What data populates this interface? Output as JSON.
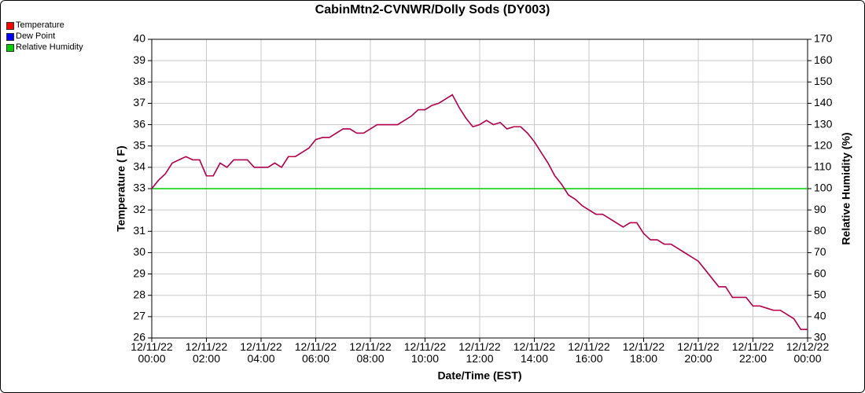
{
  "chart_data": {
    "type": "line",
    "title": "CabinMtn2-CVNWR/Dolly Sods (DY003)",
    "x_label": "Date/Time (EST)",
    "y_label": "Temperature ( F)",
    "y2_label": "Relative Humidity (%)",
    "x": [
      "12/11/22 00:00",
      "12/11/22 00:15",
      "12/11/22 00:30",
      "12/11/22 00:45",
      "12/11/22 01:00",
      "12/11/22 01:15",
      "12/11/22 01:30",
      "12/11/22 01:45",
      "12/11/22 02:00",
      "12/11/22 02:15",
      "12/11/22 02:30",
      "12/11/22 02:45",
      "12/11/22 03:00",
      "12/11/22 03:15",
      "12/11/22 03:30",
      "12/11/22 03:45",
      "12/11/22 04:00",
      "12/11/22 04:15",
      "12/11/22 04:30",
      "12/11/22 04:45",
      "12/11/22 05:00",
      "12/11/22 05:15",
      "12/11/22 05:30",
      "12/11/22 05:45",
      "12/11/22 06:00",
      "12/11/22 06:15",
      "12/11/22 06:30",
      "12/11/22 06:45",
      "12/11/22 07:00",
      "12/11/22 07:15",
      "12/11/22 07:30",
      "12/11/22 07:45",
      "12/11/22 08:00",
      "12/11/22 08:15",
      "12/11/22 08:30",
      "12/11/22 08:45",
      "12/11/22 09:00",
      "12/11/22 09:15",
      "12/11/22 09:30",
      "12/11/22 09:45",
      "12/11/22 10:00",
      "12/11/22 10:15",
      "12/11/22 10:30",
      "12/11/22 10:45",
      "12/11/22 11:00",
      "12/11/22 11:15",
      "12/11/22 11:30",
      "12/11/22 11:45",
      "12/11/22 12:00",
      "12/11/22 12:15",
      "12/11/22 12:30",
      "12/11/22 12:45",
      "12/11/22 13:00",
      "12/11/22 13:15",
      "12/11/22 13:30",
      "12/11/22 13:45",
      "12/11/22 14:00",
      "12/11/22 14:15",
      "12/11/22 14:30",
      "12/11/22 14:45",
      "12/11/22 15:00",
      "12/11/22 15:15",
      "12/11/22 15:30",
      "12/11/22 15:45",
      "12/11/22 16:00",
      "12/11/22 16:15",
      "12/11/22 16:30",
      "12/11/22 16:45",
      "12/11/22 17:00",
      "12/11/22 17:15",
      "12/11/22 17:30",
      "12/11/22 17:45",
      "12/11/22 18:00",
      "12/11/22 18:15",
      "12/11/22 18:30",
      "12/11/22 18:45",
      "12/11/22 19:00",
      "12/11/22 19:15",
      "12/11/22 19:30",
      "12/11/22 19:45",
      "12/11/22 20:00",
      "12/11/22 20:15",
      "12/11/22 20:30",
      "12/11/22 20:45",
      "12/11/22 21:00",
      "12/11/22 21:15",
      "12/11/22 21:30",
      "12/11/22 21:45",
      "12/11/22 22:00",
      "12/11/22 22:15",
      "12/11/22 22:30",
      "12/11/22 22:45",
      "12/11/22 23:00",
      "12/11/22 23:15",
      "12/11/22 23:30",
      "12/11/22 23:45",
      "12/12/22 00:00"
    ],
    "series": [
      {
        "name": "Temperature",
        "color": "#ff0000",
        "values": [
          33.0,
          33.4,
          33.7,
          34.2,
          34.35,
          34.5,
          34.35,
          34.35,
          33.6,
          33.6,
          34.2,
          34.0,
          34.35,
          34.35,
          34.35,
          34.0,
          34.0,
          34.0,
          34.2,
          34.0,
          34.5,
          34.5,
          34.7,
          34.9,
          35.3,
          35.4,
          35.4,
          35.6,
          35.8,
          35.8,
          35.6,
          35.6,
          35.8,
          36.0,
          36.0,
          36.0,
          36.0,
          36.2,
          36.4,
          36.7,
          36.7,
          36.9,
          37.0,
          37.2,
          37.4,
          36.8,
          36.3,
          35.9,
          36.0,
          36.2,
          36.0,
          36.1,
          35.8,
          35.9,
          35.9,
          35.6,
          35.2,
          34.7,
          34.2,
          33.6,
          33.2,
          32.7,
          32.5,
          32.2,
          32.0,
          31.8,
          31.8,
          31.6,
          31.4,
          31.2,
          31.4,
          31.4,
          30.9,
          30.6,
          30.6,
          30.4,
          30.4,
          30.2,
          30.0,
          29.8,
          29.6,
          29.2,
          28.8,
          28.4,
          28.4,
          27.9,
          27.9,
          27.9,
          27.5,
          27.5,
          27.4,
          27.3,
          27.3,
          27.1,
          26.9,
          26.4,
          26.4
        ]
      },
      {
        "name": "Dew Point",
        "color": "#0000ff",
        "values": [
          33.0,
          33.4,
          33.7,
          34.2,
          34.35,
          34.5,
          34.35,
          34.35,
          33.6,
          33.6,
          34.2,
          34.0,
          34.35,
          34.35,
          34.35,
          34.0,
          34.0,
          34.0,
          34.2,
          34.0,
          34.5,
          34.5,
          34.7,
          34.9,
          35.3,
          35.4,
          35.4,
          35.6,
          35.8,
          35.8,
          35.6,
          35.6,
          35.8,
          36.0,
          36.0,
          36.0,
          36.0,
          36.2,
          36.4,
          36.7,
          36.7,
          36.9,
          37.0,
          37.2,
          37.4,
          36.8,
          36.3,
          35.9,
          36.0,
          36.2,
          36.0,
          36.1,
          35.8,
          35.9,
          35.9,
          35.6,
          35.2,
          34.7,
          34.2,
          33.6,
          33.2,
          32.7,
          32.5,
          32.2,
          32.0,
          31.8,
          31.8,
          31.6,
          31.4,
          31.2,
          31.4,
          31.4,
          30.9,
          30.6,
          30.6,
          30.4,
          30.4,
          30.2,
          30.0,
          29.8,
          29.6,
          29.2,
          28.8,
          28.4,
          28.4,
          27.9,
          27.9,
          27.9,
          27.5,
          27.5,
          27.4,
          27.3,
          27.3,
          27.1,
          26.9,
          26.4,
          26.4
        ]
      },
      {
        "name": "Relative Humidity",
        "color": "#00cc00",
        "axis": "y2",
        "values": [
          100,
          100,
          100,
          100,
          100,
          100,
          100,
          100,
          100,
          100,
          100,
          100,
          100,
          100,
          100,
          100,
          100,
          100,
          100,
          100,
          100,
          100,
          100,
          100,
          100,
          100,
          100,
          100,
          100,
          100,
          100,
          100,
          100,
          100,
          100,
          100,
          100,
          100,
          100,
          100,
          100,
          100,
          100,
          100,
          100,
          100,
          100,
          100,
          100,
          100,
          100,
          100,
          100,
          100,
          100,
          100,
          100,
          100,
          100,
          100,
          100,
          100,
          100,
          100,
          100,
          100,
          100,
          100,
          100,
          100,
          100,
          100,
          100,
          100,
          100,
          100,
          100,
          100,
          100,
          100,
          100,
          100,
          100,
          100,
          100,
          100,
          100,
          100,
          100,
          100,
          100,
          100,
          100,
          100,
          100,
          100,
          100
        ]
      }
    ],
    "xlim": [
      "12/11/22 00:00",
      "12/12/22 00:00"
    ],
    "xticks": [
      "12/11/22 00:00",
      "12/11/22 02:00",
      "12/11/22 04:00",
      "12/11/22 06:00",
      "12/11/22 08:00",
      "12/11/22 10:00",
      "12/11/22 12:00",
      "12/11/22 14:00",
      "12/11/22 16:00",
      "12/11/22 18:00",
      "12/11/22 20:00",
      "12/11/22 22:00",
      "12/12/22 00:00"
    ],
    "ylim": [
      26,
      40
    ],
    "yticks": [
      26,
      27,
      28,
      29,
      30,
      31,
      32,
      33,
      34,
      35,
      36,
      37,
      38,
      39,
      40
    ],
    "y2lim": [
      30,
      170
    ],
    "y2ticks": [
      30,
      40,
      50,
      60,
      70,
      80,
      90,
      100,
      110,
      120,
      130,
      140,
      150,
      160,
      170
    ],
    "grid": true,
    "legend": "top-left"
  }
}
